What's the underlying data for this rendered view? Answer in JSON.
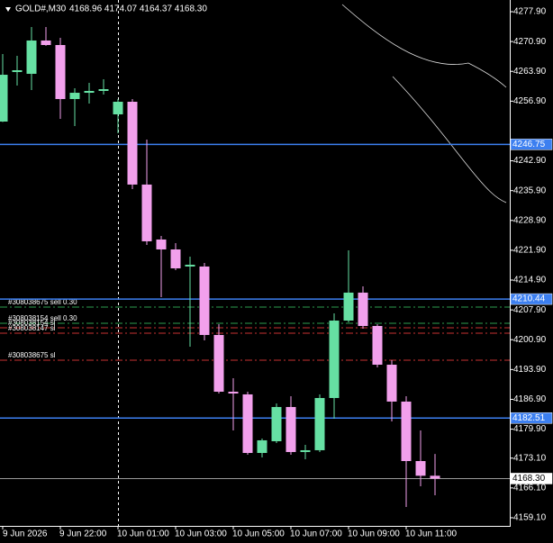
{
  "chart_data": {
    "type": "candlestick",
    "symbol": "GOLD#,M30",
    "header": "4168.96 4174.07 4164.37 4168.30",
    "categories": [
      "9 Jun 2026",
      null,
      null,
      null,
      "9 Jun 22:00",
      null,
      null,
      null,
      "10 Jun 01:00",
      null,
      null,
      null,
      "10 Jun 03:00",
      null,
      null,
      null,
      "10 Jun 05:00",
      null,
      null,
      null,
      "10 Jun 07:00",
      null,
      null,
      null,
      "10 Jun 09:00",
      null,
      null,
      null,
      "10 Jun 11:00",
      null,
      null
    ],
    "open": [
      4252.11,
      4263.74,
      4263.32,
      4271.14,
      4270.08,
      4257.4,
      4258.87,
      4259.3,
      4253.8,
      4256.76,
      4237.32,
      4224.42,
      4222.09,
      4218.08,
      4218.08,
      4202.01,
      4188.69,
      4188.06,
      4174.31,
      4177.06,
      4185.1,
      4174.53,
      4174.95,
      4187.21,
      4205.39,
      4211.95,
      4204.12,
      4195.03,
      4186.37,
      4172.41,
      4168.96
    ],
    "high": [
      4267.97,
      4267.54,
      4274.31,
      4274.31,
      4271.77,
      4259.93,
      4261.2,
      4262.05,
      4257.4,
      4257.4,
      4247.88,
      4225.26,
      4223.57,
      4220.4,
      4218.92,
      4204.55,
      4191.86,
      4188.69,
      4177.7,
      4185.94,
      4187.63,
      4176.22,
      4188.06,
      4207.08,
      4221.88,
      4213.43,
      4204.55,
      4196.09,
      4187.63,
      4179.6,
      4174.07
    ],
    "low": [
      4252.0,
      4260.57,
      4259.51,
      4269.9,
      4252.75,
      4251.05,
      4256.34,
      4258.45,
      4249.36,
      4236.26,
      4223.15,
      4210.89,
      4217.23,
      4199.26,
      4200.74,
      4188.27,
      4179.6,
      4173.89,
      4173.26,
      4176.64,
      4173.89,
      4172.84,
      4174.53,
      4182.35,
      4204.97,
      4203.49,
      4194.4,
      4181.72,
      4161.63,
      4166.5,
      4164.37
    ],
    "close": [
      4263.1,
      4264.16,
      4271.14,
      4270.08,
      4257.4,
      4258.87,
      4259.3,
      4259.72,
      4256.76,
      4237.32,
      4224.0,
      4222.09,
      4217.65,
      4218.5,
      4202.01,
      4188.69,
      4188.27,
      4174.31,
      4177.28,
      4185.1,
      4174.53,
      4174.95,
      4187.21,
      4205.39,
      4211.95,
      4204.12,
      4195.03,
      4186.37,
      4172.41,
      4168.96,
      4168.3
    ],
    "up_color": "#66e0a3",
    "down_color": "#f2a0ec",
    "ylim": [
      4157.4,
      4280.65
    ],
    "yticks": [
      {
        "value": 4277.9,
        "label": "4277.90"
      },
      {
        "value": 4270.9,
        "label": "4270.90"
      },
      {
        "value": 4263.9,
        "label": "4263.90"
      },
      {
        "value": 4256.9,
        "label": "4256.90"
      },
      {
        "value": 4242.9,
        "label": "4242.90"
      },
      {
        "value": 4235.9,
        "label": "4235.90"
      },
      {
        "value": 4228.9,
        "label": "4228.90"
      },
      {
        "value": 4221.9,
        "label": "4221.90"
      },
      {
        "value": 4214.9,
        "label": "4214.90"
      },
      {
        "value": 4207.9,
        "label": "4207.90"
      },
      {
        "value": 4200.9,
        "label": "4200.90"
      },
      {
        "value": 4193.9,
        "label": "4193.90"
      },
      {
        "value": 4186.9,
        "label": "4186.90"
      },
      {
        "value": 4179.9,
        "label": "4179.90"
      },
      {
        "value": 4173.1,
        "label": "4173.10"
      },
      {
        "value": 4166.1,
        "label": "4166.10"
      },
      {
        "value": 4159.1,
        "label": "4159.10"
      }
    ],
    "levels": [
      {
        "value": 4246.75,
        "label": "4246.75",
        "color": "#3c7ff0"
      },
      {
        "value": 4210.44,
        "label": "4210.44",
        "color": "#3c7ff0"
      },
      {
        "value": 4182.51,
        "label": "4182.51",
        "color": "#3c7ff0"
      },
      {
        "value": 4168.3,
        "label": "4168.30",
        "color": "#9a9a9a"
      }
    ],
    "orders": [
      {
        "value": 4208.56,
        "label": "#308038675 sell 0.30",
        "color": "#2e9e4f"
      },
      {
        "value": 4204.76,
        "label": "#308038154 sell 0.30",
        "color": "#2e9e4f"
      },
      {
        "value": 4203.7,
        "label": "#308038154 sl",
        "color": "#c83232"
      },
      {
        "value": 4202.43,
        "label": "#308038147 sl",
        "color": "#c83232"
      },
      {
        "value": 4196.09,
        "label": "#308038675 sl",
        "color": "#c83232"
      }
    ]
  }
}
